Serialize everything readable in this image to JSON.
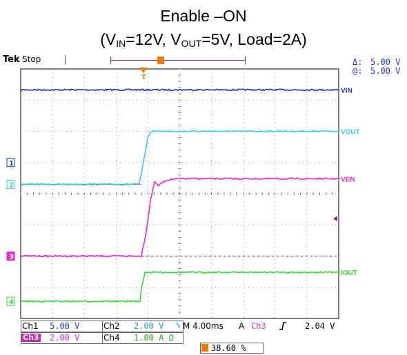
{
  "title_line1": "Enable –ON",
  "title_line2": {
    "open": "(V",
    "sub_in": "IN",
    "mid1": "=12V, V",
    "sub_out": "OUT",
    "mid2": "=5V, Load=2A)"
  },
  "scope": {
    "brand": "Tek",
    "status": "Stop",
    "trigger_marker": "T",
    "cursor_delta_label": "Δ:",
    "cursor_delta_value": "5.00 V",
    "cursor_at_label": "@:",
    "cursor_at_value": "5.00 V",
    "timebase": "M 4.00ms",
    "trigger_mode": "A",
    "trigger_source": "Ch3",
    "trigger_slope_icon": "rising-edge-icon",
    "trigger_level": "2.04 V",
    "trigger_position": "38.60 %",
    "channels": [
      {
        "tag": "Ch1",
        "scale": "5.00 V",
        "color": "#1f33c8"
      },
      {
        "tag": "Ch2",
        "scale": "2.00 V",
        "color": "#33cfe0",
        "suffix": "%"
      },
      {
        "tag": "Ch3",
        "scale": "2.00 V",
        "color": "#e22ad0"
      },
      {
        "tag": "Ch4",
        "scale": "1.00 A Ω",
        "color": "#35d835"
      }
    ],
    "markers": [
      "1",
      "2",
      "3",
      "4"
    ]
  },
  "chart_data": {
    "type": "line",
    "x_unit": "ms",
    "xlim": [
      -15.44,
      24.56
    ],
    "ylim": [
      -4,
      4
    ],
    "y_unit": "div",
    "grid": true,
    "series": [
      {
        "name": "VIN",
        "color": "#1f33c8",
        "x": [
          -15.44,
          24.56
        ],
        "y": [
          3.33,
          3.33
        ]
      },
      {
        "name": "VOUT",
        "color": "#33cfe0",
        "x": [
          -15.44,
          -0.6,
          -0.2,
          0.2,
          0.6,
          1.0,
          24.56
        ],
        "y": [
          0.3,
          0.3,
          0.7,
          1.3,
          1.85,
          2.0,
          2.0
        ]
      },
      {
        "name": "VEN",
        "color": "#e22ad0",
        "x": [
          -15.44,
          -0.3,
          0.3,
          0.9,
          1.4,
          1.8,
          2.4,
          3.2,
          4.5,
          24.56
        ],
        "y": [
          -2.0,
          -2.0,
          -1.3,
          -0.2,
          0.4,
          0.25,
          0.37,
          0.45,
          0.48,
          0.48
        ]
      },
      {
        "name": "IOUT",
        "color": "#35d835",
        "x": [
          -15.44,
          -0.4,
          -0.3,
          0.2,
          24.56
        ],
        "y": [
          -3.45,
          -3.45,
          -3.1,
          -2.52,
          -2.52
        ]
      }
    ],
    "reference_levels": [
      {
        "channel": "Ch3",
        "y": 0.3,
        "style": "solid",
        "from": -15.44,
        "to": -0.3
      },
      {
        "channel": "Ch3",
        "y": -2.0,
        "style": "dashed",
        "from": -0.3,
        "to": 24.56
      }
    ],
    "ground_markers": [
      {
        "channel": "Ch1",
        "label": "1",
        "y": 1.0
      },
      {
        "channel": "Ch2",
        "label": "2",
        "y": 0.3
      },
      {
        "channel": "Ch3",
        "label": "3",
        "y": -2.0
      },
      {
        "channel": "Ch4",
        "label": "4",
        "y": -3.45
      }
    ],
    "trigger_level_marker_y": -0.8
  }
}
